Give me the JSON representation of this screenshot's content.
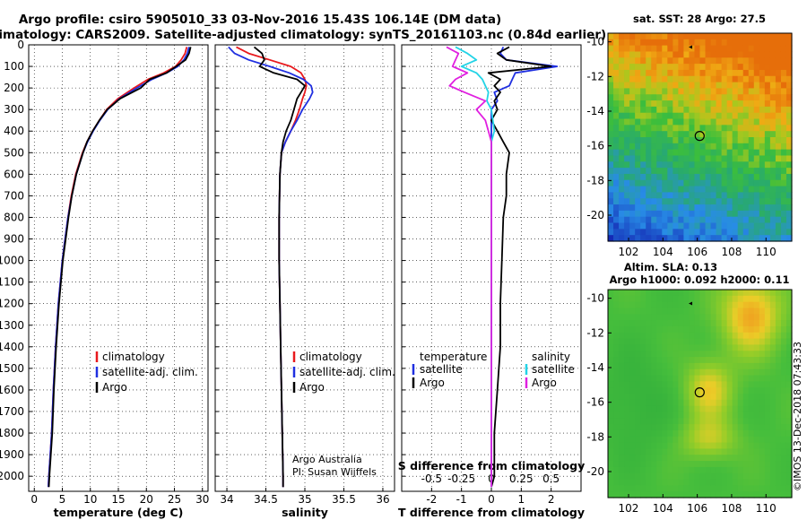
{
  "title": {
    "line1": "Argo profile: csiro 5905010_33 03-Nov-2016 15.43S 106.14E (DM data)",
    "line2": "Climatology: CARS2009. Satellite-adjusted climatology: synTS_20161103.nc (0.84d earlier)"
  },
  "colors": {
    "climatology": "#e8191d",
    "satellite": "#1f2fe0",
    "argo": "#000000",
    "sal_satellite": "#22d3e6",
    "sal_argo": "#e020e0"
  },
  "legend": {
    "climatology": "climatology",
    "satellite": "satellite-adj. clim.",
    "argo": "Argo",
    "diff_temperature": "temperature",
    "diff_salinity": "salinity",
    "diff_satellite": "satellite",
    "diff_argo": "Argo"
  },
  "credits": {
    "line1": "Argo Australia",
    "line2": "PI: Susan Wijffels",
    "imos": "©IMOS 13-Dec-2018 07:43:33"
  },
  "maps": {
    "sst_title": "sat. SST: 28 Argo: 27.5",
    "sla_title1": "Altim. SLA: 0.13",
    "sla_title2": "Argo h1000: 0.092 h2000: 0.11",
    "lon_ticks": [
      "102",
      "104",
      "106",
      "108",
      "110"
    ],
    "lat_ticks": [
      "-10",
      "-12",
      "-14",
      "-16",
      "-18",
      "-20"
    ],
    "profile_marker": {
      "lon": 106.14,
      "lat": -15.43
    }
  },
  "chart_data": [
    {
      "type": "line",
      "name": "temperature",
      "xlabel": "temperature (deg C)",
      "ylabel": "depth",
      "xlim": [
        -1,
        31
      ],
      "ylim": [
        2070,
        0
      ],
      "xticks": [
        "0",
        "5",
        "10",
        "15",
        "20",
        "25",
        "30"
      ],
      "yticks": [
        "0",
        "100",
        "200",
        "300",
        "400",
        "500",
        "600",
        "700",
        "800",
        "900",
        "1000",
        "1100",
        "1200",
        "1300",
        "1400",
        "1500",
        "1600",
        "1700",
        "1800",
        "1900",
        "2000"
      ],
      "depth": [
        10,
        40,
        70,
        100,
        130,
        160,
        200,
        250,
        300,
        350,
        400,
        450,
        500,
        600,
        700,
        800,
        900,
        1000,
        1200,
        1400,
        1600,
        1800,
        2000,
        2050
      ],
      "series": [
        {
          "name": "climatology",
          "values": [
            27.2,
            26.9,
            26.2,
            25.2,
            23.1,
            20.3,
            17.8,
            14.9,
            12.9,
            11.6,
            10.4,
            9.4,
            8.6,
            7.4,
            6.6,
            6.0,
            5.5,
            5.0,
            4.3,
            3.8,
            3.4,
            3.1,
            2.6,
            2.5
          ]
        },
        {
          "name": "satellite",
          "values": [
            27.6,
            27.3,
            26.7,
            25.6,
            23.6,
            21.0,
            18.3,
            15.2,
            13.1,
            11.7,
            10.5,
            9.5,
            8.7,
            7.5,
            6.7,
            6.0,
            5.5,
            5.0,
            4.3,
            3.8,
            3.4,
            3.1,
            2.6,
            2.5
          ]
        },
        {
          "name": "Argo",
          "values": [
            27.9,
            27.6,
            27.0,
            25.3,
            23.6,
            20.6,
            19.0,
            15.3,
            13.0,
            11.6,
            10.4,
            9.4,
            8.7,
            7.5,
            6.7,
            6.1,
            5.6,
            5.1,
            4.4,
            3.9,
            3.5,
            3.2,
            2.7,
            2.6
          ]
        }
      ]
    },
    {
      "type": "line",
      "name": "salinity",
      "xlabel": "salinity",
      "ylabel": "depth",
      "xlim": [
        33.85,
        36.15
      ],
      "ylim": [
        2070,
        0
      ],
      "xticks": [
        "34",
        "34.5",
        "35",
        "35.5",
        "36"
      ],
      "depth": [
        10,
        40,
        70,
        100,
        130,
        160,
        190,
        220,
        250,
        300,
        350,
        400,
        450,
        500,
        600,
        800,
        1000,
        1200,
        1400,
        1600,
        1800,
        2000,
        2050
      ],
      "series": [
        {
          "name": "climatology",
          "values": [
            34.12,
            34.28,
            34.55,
            34.82,
            34.95,
            35.0,
            35.02,
            35.0,
            34.97,
            34.93,
            34.88,
            34.82,
            34.75,
            34.7,
            34.68,
            34.67,
            34.67,
            34.68,
            34.69,
            34.7,
            34.71,
            34.72,
            34.72
          ]
        },
        {
          "name": "satellite",
          "values": [
            34.02,
            34.1,
            34.28,
            34.55,
            34.8,
            34.98,
            35.08,
            35.1,
            35.06,
            34.97,
            34.9,
            34.82,
            34.75,
            34.7,
            34.68,
            34.67,
            34.67,
            34.68,
            34.69,
            34.7,
            34.71,
            34.72,
            34.72
          ]
        },
        {
          "name": "Argo",
          "values": [
            34.35,
            34.45,
            34.48,
            34.42,
            34.6,
            34.9,
            35.0,
            34.95,
            34.9,
            34.86,
            34.82,
            34.76,
            34.72,
            34.7,
            34.68,
            34.67,
            34.67,
            34.68,
            34.69,
            34.7,
            34.71,
            34.72,
            34.72
          ]
        }
      ]
    },
    {
      "type": "line",
      "name": "difference from climatology",
      "xlabel": "T difference from climatology",
      "xlabel2": "S difference from climatology",
      "xlim": [
        -3,
        3
      ],
      "ylim": [
        2070,
        0
      ],
      "xticks": [
        "-2",
        "-1",
        "0",
        "1",
        "2"
      ],
      "xticks_salinity": [
        "-0.5",
        "-0.25",
        "0",
        "0.25",
        "0.5"
      ],
      "depth": [
        10,
        40,
        70,
        100,
        130,
        160,
        190,
        220,
        260,
        300,
        350,
        400,
        450,
        500,
        600,
        700,
        800,
        1000,
        1200,
        1400,
        1600,
        1800,
        2000,
        2050
      ],
      "series": [
        {
          "name": "temperature satellite",
          "values": [
            0.4,
            0.3,
            0.5,
            2.2,
            0.8,
            0.7,
            0.6,
            0.1,
            0.2,
            0.0,
            0.0,
            0.0,
            0.0,
            0.0,
            0.0,
            0.0,
            0.0,
            0.0,
            0.0,
            0.0,
            0.0,
            0.0,
            0.0,
            0.0
          ]
        },
        {
          "name": "temperature Argo",
          "values": [
            0.6,
            0.2,
            0.5,
            2.0,
            -0.1,
            0.3,
            0.1,
            0.3,
            0.1,
            0.2,
            0.0,
            0.2,
            0.4,
            0.6,
            0.5,
            0.5,
            0.4,
            0.35,
            0.3,
            0.3,
            0.2,
            0.1,
            0.1,
            0.0
          ]
        },
        {
          "name": "salinity satellite",
          "values": [
            -1.2,
            -0.8,
            -0.5,
            -1.0,
            -0.5,
            -0.3,
            -0.2,
            -0.1,
            -0.15,
            0.0,
            0.05,
            0.1,
            0.0,
            0.0,
            0.0,
            0.0,
            0.0,
            0.0,
            0.0,
            0.0,
            0.0,
            0.0,
            0.0,
            0.0
          ]
        },
        {
          "name": "salinity Argo",
          "values": [
            -1.5,
            -1.1,
            -1.2,
            -1.3,
            -0.8,
            -1.2,
            -1.4,
            -0.9,
            -0.2,
            -0.5,
            -0.2,
            -0.1,
            0.0,
            0.0,
            0.0,
            0.0,
            0.0,
            0.0,
            0.0,
            0.0,
            0.0,
            0.0,
            0.0,
            0.0
          ]
        }
      ]
    }
  ]
}
